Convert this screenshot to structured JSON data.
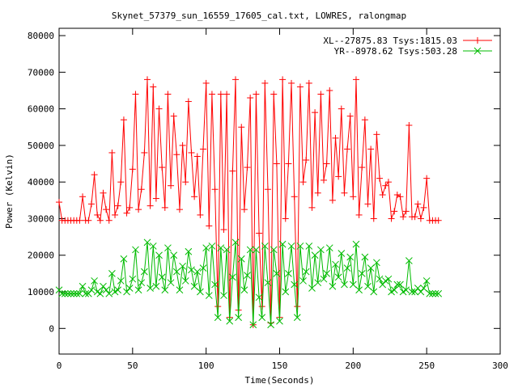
{
  "chart_data": {
    "type": "line",
    "title": "Skynet_57379_sun_16559_17605_cal.txt, LOWRES, ralongmap",
    "xlabel": "Time(Seconds)",
    "ylabel": "Power (Kelvin)",
    "xlim": [
      0,
      300
    ],
    "ylim": [
      -7000,
      82000
    ],
    "xticks": [
      0,
      50,
      100,
      150,
      200,
      250,
      300
    ],
    "yticks": [
      0,
      10000,
      20000,
      30000,
      40000,
      50000,
      60000,
      70000,
      80000
    ],
    "xtick_labels": [
      "0",
      "50",
      "100",
      "150",
      "200",
      "250",
      "300"
    ],
    "ytick_labels": [
      "0",
      "10000",
      "20000",
      "30000",
      "40000",
      "50000",
      "60000",
      "70000",
      "80000"
    ],
    "legend_position": "top-right",
    "grid": false,
    "series": [
      {
        "name": "XL--27875.83 Tsys:1815.03",
        "color": "#ff0000",
        "marker": "plus",
        "x": [
          0,
          2,
          4,
          6,
          8,
          10,
          12,
          14,
          16,
          18,
          20,
          22,
          24,
          26,
          28,
          30,
          32,
          34,
          36,
          38,
          40,
          42,
          44,
          46,
          48,
          50,
          52,
          54,
          56,
          58,
          60,
          62,
          64,
          66,
          68,
          70,
          72,
          74,
          76,
          78,
          80,
          82,
          84,
          86,
          88,
          90,
          92,
          94,
          96,
          98,
          100,
          102,
          104,
          106,
          108,
          110,
          112,
          114,
          116,
          118,
          120,
          122,
          124,
          126,
          128,
          130,
          132,
          134,
          136,
          138,
          140,
          142,
          144,
          146,
          148,
          150,
          152,
          154,
          156,
          158,
          160,
          162,
          164,
          166,
          168,
          170,
          172,
          174,
          176,
          178,
          180,
          182,
          184,
          186,
          188,
          190,
          192,
          194,
          196,
          198,
          200,
          202,
          204,
          206,
          208,
          210,
          212,
          214,
          216,
          218,
          220,
          222,
          224,
          226,
          228,
          230,
          232,
          234,
          236,
          238,
          240,
          242,
          244,
          246,
          248,
          250,
          252,
          254,
          256,
          258
        ],
        "y": [
          34500,
          29500,
          29500,
          29500,
          29500,
          29500,
          29500,
          29500,
          36000,
          29500,
          29500,
          34000,
          42000,
          31000,
          29500,
          37000,
          32500,
          29500,
          48000,
          31000,
          33500,
          40000,
          57000,
          31500,
          33000,
          43500,
          64000,
          32500,
          38000,
          48000,
          68000,
          33500,
          66000,
          35500,
          60000,
          44000,
          33000,
          64000,
          39000,
          58000,
          47500,
          32500,
          50000,
          40000,
          62000,
          48000,
          36000,
          47000,
          31000,
          49000,
          67000,
          28000,
          64000,
          38000,
          6000,
          64000,
          27000,
          64000,
          3000,
          43000,
          68000,
          5000,
          55000,
          32500,
          44000,
          63000,
          1000,
          64000,
          26000,
          6000,
          67000,
          38000,
          1500,
          64000,
          45000,
          3000,
          68000,
          30000,
          45000,
          67000,
          36000,
          6000,
          66000,
          40000,
          46000,
          67000,
          33000,
          59000,
          37000,
          64000,
          40500,
          45000,
          65000,
          35000,
          52000,
          41500,
          60000,
          37000,
          49000,
          58000,
          36000,
          68000,
          31000,
          44000,
          57000,
          34000,
          49000,
          30000,
          53000,
          41000,
          36500,
          39000,
          40000,
          30000,
          32000,
          36500,
          36000,
          30500,
          32000,
          55500,
          30500,
          30500,
          34000,
          30000,
          33000,
          41000,
          29500,
          29500,
          29500,
          29500
        ]
      },
      {
        "name": "YR--8978.62 Tsys:503.28",
        "color": "#00bb00",
        "marker": "cross",
        "x": [
          0,
          2,
          4,
          6,
          8,
          10,
          12,
          14,
          16,
          18,
          20,
          22,
          24,
          26,
          28,
          30,
          32,
          34,
          36,
          38,
          40,
          42,
          44,
          46,
          48,
          50,
          52,
          54,
          56,
          58,
          60,
          62,
          64,
          66,
          68,
          70,
          72,
          74,
          76,
          78,
          80,
          82,
          84,
          86,
          88,
          90,
          92,
          94,
          96,
          98,
          100,
          102,
          104,
          106,
          108,
          110,
          112,
          114,
          116,
          118,
          120,
          122,
          124,
          126,
          128,
          130,
          132,
          134,
          136,
          138,
          140,
          142,
          144,
          146,
          148,
          150,
          152,
          154,
          156,
          158,
          160,
          162,
          164,
          166,
          168,
          170,
          172,
          174,
          176,
          178,
          180,
          182,
          184,
          186,
          188,
          190,
          192,
          194,
          196,
          198,
          200,
          202,
          204,
          206,
          208,
          210,
          212,
          214,
          216,
          218,
          220,
          222,
          224,
          226,
          228,
          230,
          232,
          234,
          236,
          238,
          240,
          242,
          244,
          246,
          248,
          250,
          252,
          254,
          256,
          258
        ],
        "y": [
          10500,
          9500,
          9500,
          9500,
          9500,
          9500,
          9500,
          9500,
          11500,
          9500,
          9500,
          10500,
          13000,
          10000,
          9500,
          11500,
          10500,
          9500,
          15000,
          10000,
          10500,
          13000,
          19000,
          10000,
          11000,
          13500,
          21500,
          10500,
          12500,
          15500,
          23500,
          11000,
          22500,
          11500,
          20000,
          14000,
          10500,
          22000,
          12500,
          20000,
          15500,
          10500,
          17000,
          13000,
          21000,
          16000,
          11500,
          15500,
          10000,
          16500,
          22000,
          9000,
          22500,
          12000,
          3000,
          22000,
          9000,
          21500,
          2000,
          14000,
          23500,
          3000,
          19000,
          10500,
          14500,
          21500,
          1000,
          21500,
          8500,
          3000,
          22500,
          12500,
          1000,
          21500,
          15000,
          2000,
          23000,
          10000,
          15000,
          22500,
          12000,
          3000,
          22500,
          13000,
          15500,
          22500,
          11000,
          20000,
          12500,
          21500,
          13500,
          15000,
          22000,
          11500,
          17500,
          14000,
          20500,
          12000,
          16500,
          19500,
          12000,
          23000,
          10500,
          15000,
          19500,
          11500,
          16500,
          10000,
          18000,
          13500,
          12000,
          13000,
          13500,
          10000,
          10500,
          12000,
          12000,
          10000,
          10500,
          18500,
          10000,
          10000,
          11000,
          10000,
          11000,
          13000,
          9500,
          9500,
          9500,
          9500
        ]
      }
    ]
  }
}
